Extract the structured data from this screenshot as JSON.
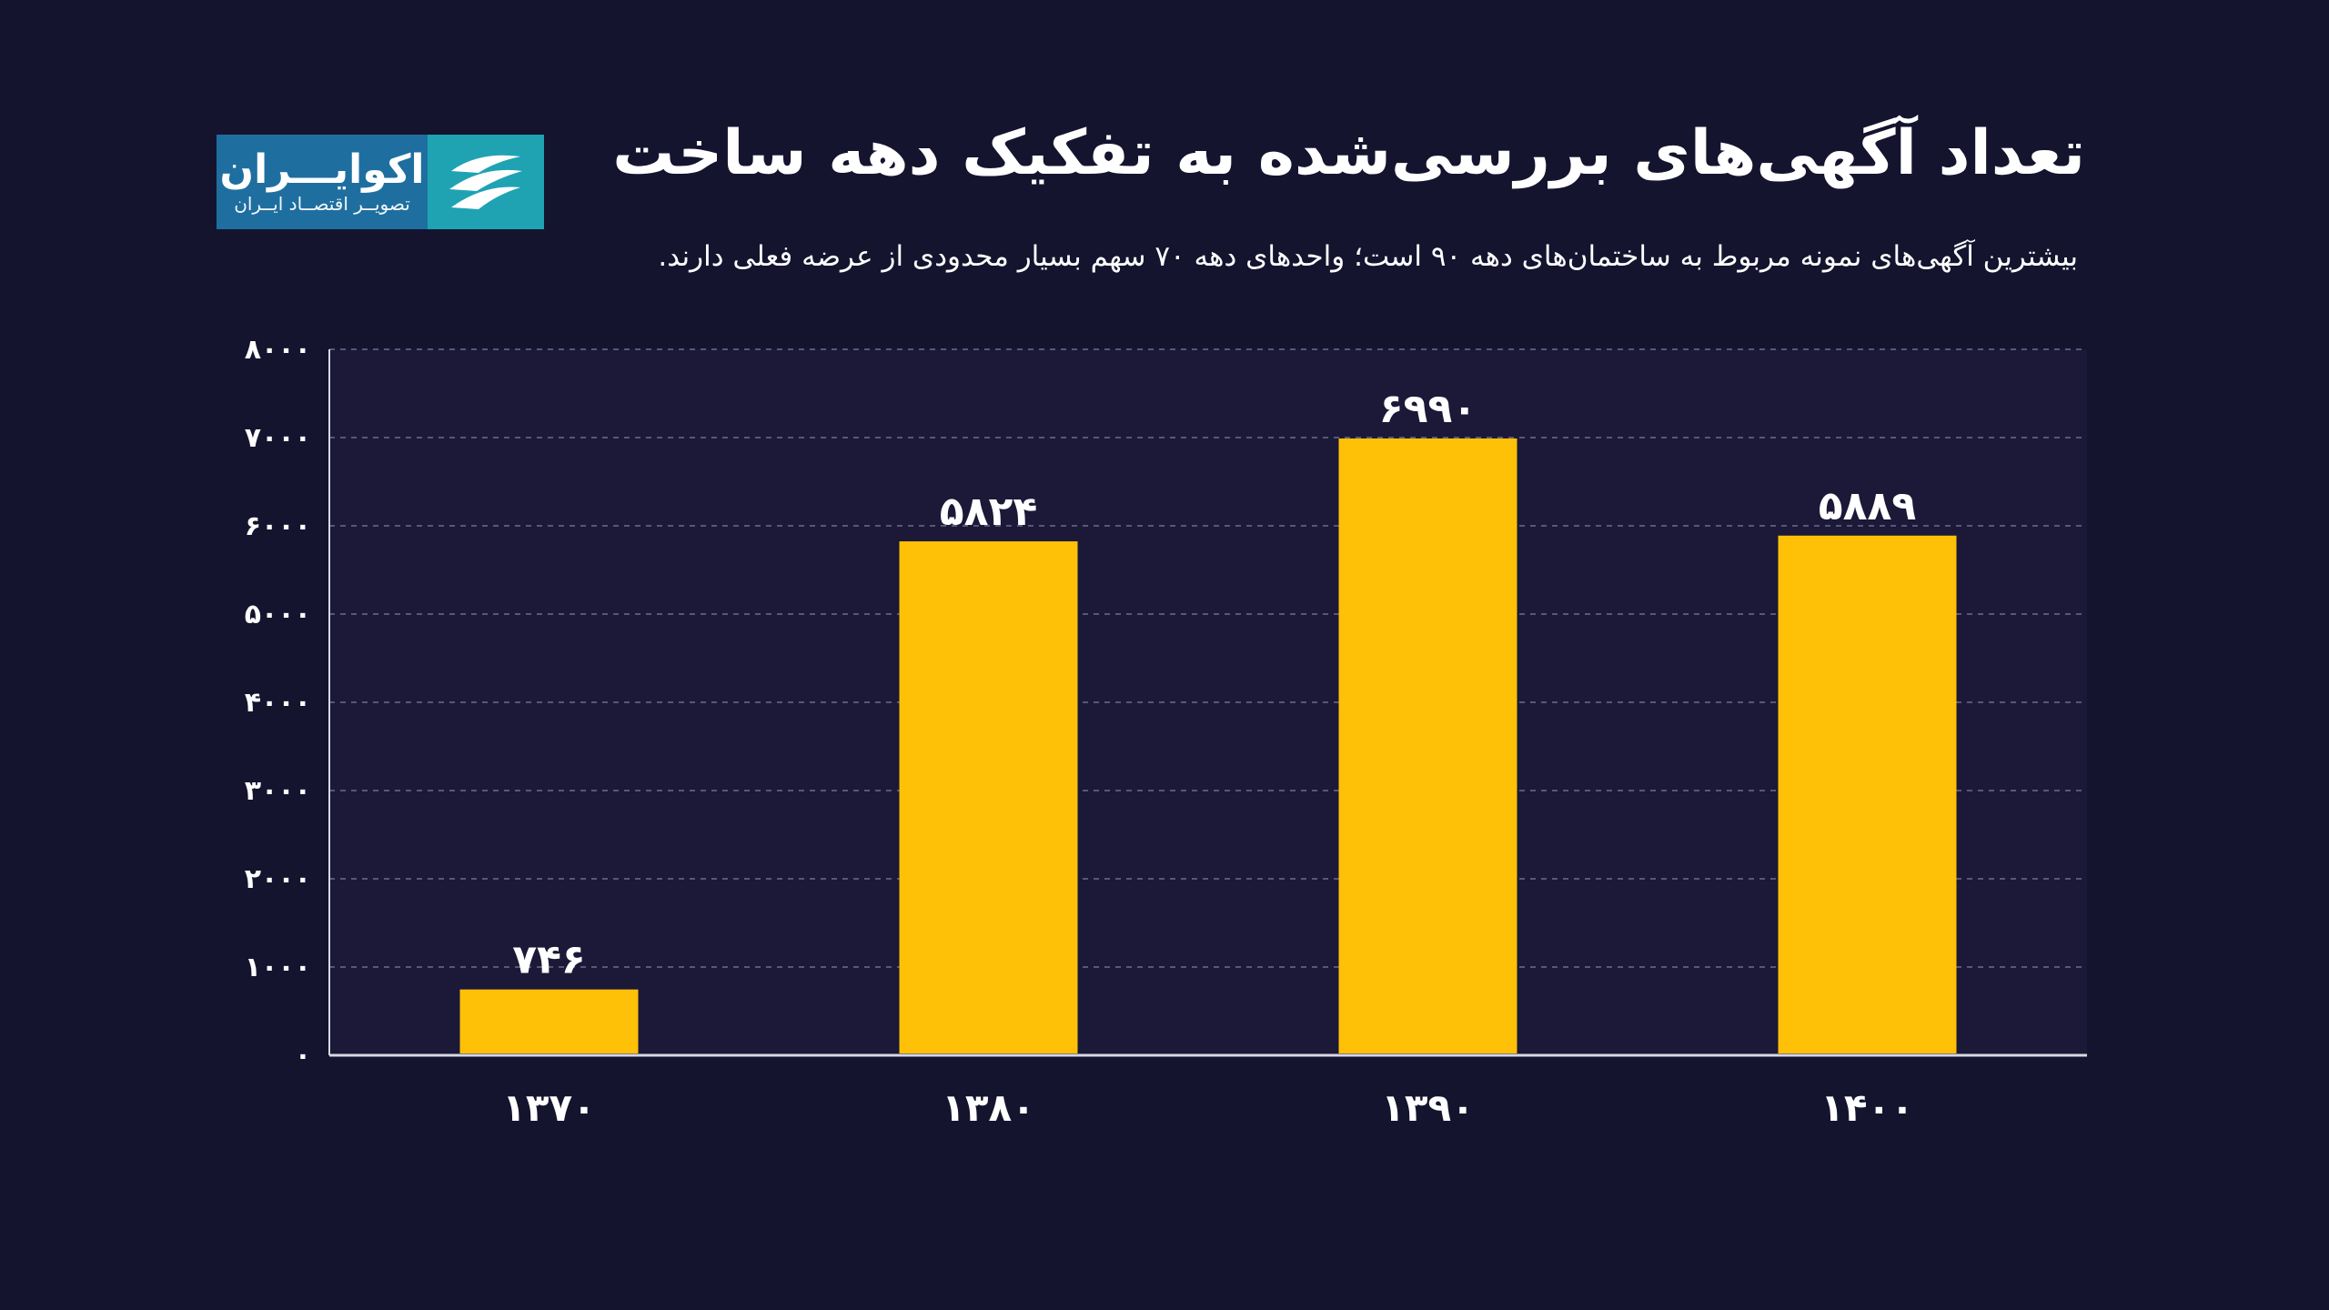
{
  "title": "تعداد آگهی‌های بررسی‌شده به تفکیک دهه ساخت",
  "subtitle": "بیشترین آگهی‌های نمونه مربوط به ساختمان‌های دهه ۹۰ است؛ واحدهای دهه ۷۰ سهم بسیار محدودی از عرضه فعلی دارند.",
  "logo": {
    "name": "اکوایـــران",
    "tagline": "تصویــر اقتصــاد ایــران",
    "icon": "ecoiran-logo-icon"
  },
  "colors": {
    "background": "#15142f",
    "plot_background": "#1b1838",
    "bar": "#ffc107",
    "text": "#ffffff",
    "grid": "#6e6c8c",
    "logo_text_bg": "#1e6fa0",
    "logo_mark_bg": "#1fa3b3"
  },
  "chart_data": {
    "type": "bar",
    "title": "تعداد آگهی‌های بررسی‌شده به تفکیک دهه ساخت",
    "xlabel": "",
    "ylabel": "",
    "categories": [
      "۱۳۷۰",
      "۱۳۸۰",
      "۱۳۹۰",
      "۱۴۰۰"
    ],
    "values": [
      746,
      5824,
      6990,
      5889
    ],
    "value_labels": [
      "۷۴۶",
      "۵۸۲۴",
      "۶۹۹۰",
      "۵۸۸۹"
    ],
    "ylim": [
      0,
      8000
    ],
    "yticks": [
      0,
      1000,
      2000,
      3000,
      4000,
      5000,
      6000,
      7000,
      8000
    ],
    "ytick_labels": [
      "۰",
      "۱۰۰۰",
      "۲۰۰۰",
      "۳۰۰۰",
      "۴۰۰۰",
      "۵۰۰۰",
      "۶۰۰۰",
      "۷۰۰۰",
      "۸۰۰۰"
    ],
    "grid": true,
    "legend": "none"
  }
}
